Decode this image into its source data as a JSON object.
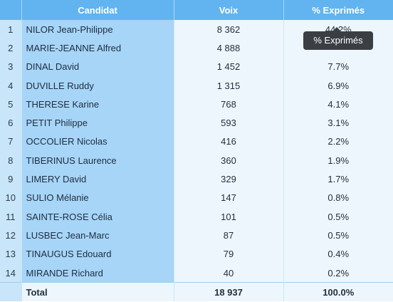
{
  "table": {
    "headers": {
      "num": "",
      "candidat": "Candidat",
      "voix": "Voix",
      "pct": "% Exprimés"
    },
    "rows": [
      {
        "num": "1",
        "name": "NILOR Jean-Philippe",
        "voix": "8 362",
        "pct": "44.2%"
      },
      {
        "num": "2",
        "name": "MARIE-JEANNE Alfred",
        "voix": "4 888",
        "pct": ""
      },
      {
        "num": "3",
        "name": "DINAL David",
        "voix": "1 452",
        "pct": "7.7%"
      },
      {
        "num": "4",
        "name": "DUVILLE Ruddy",
        "voix": "1 315",
        "pct": "6.9%"
      },
      {
        "num": "5",
        "name": "THERESE Karine",
        "voix": "768",
        "pct": "4.1%"
      },
      {
        "num": "6",
        "name": "PETIT Philippe",
        "voix": "593",
        "pct": "3.1%"
      },
      {
        "num": "7",
        "name": "OCCOLIER Nicolas",
        "voix": "416",
        "pct": "2.2%"
      },
      {
        "num": "8",
        "name": "TIBERINUS Laurence",
        "voix": "360",
        "pct": "1.9%"
      },
      {
        "num": "9",
        "name": "LIMERY David",
        "voix": "329",
        "pct": "1.7%"
      },
      {
        "num": "10",
        "name": "SULIO Mélanie",
        "voix": "147",
        "pct": "0.8%"
      },
      {
        "num": "11",
        "name": "SAINTE-ROSE Célia",
        "voix": "101",
        "pct": "0.5%"
      },
      {
        "num": "12",
        "name": "LUSBEC Jean-Marc",
        "voix": "87",
        "pct": "0.5%"
      },
      {
        "num": "13",
        "name": "TINAUGUS Edouard",
        "voix": "79",
        "pct": "0.4%"
      },
      {
        "num": "14",
        "name": "MIRANDE Richard",
        "voix": "40",
        "pct": "0.2%"
      }
    ],
    "total": {
      "label": "Total",
      "voix": "18 937",
      "pct": "100.0%"
    }
  },
  "tooltip": {
    "text": "% Exprimés"
  },
  "colors": {
    "header_bg": "#61b4ef",
    "name_col_bg": "#a6d5f8",
    "num_col_bg": "#c9e5f9",
    "cell_bg": "#eef6fd",
    "tooltip_bg": "#3b3f44"
  }
}
